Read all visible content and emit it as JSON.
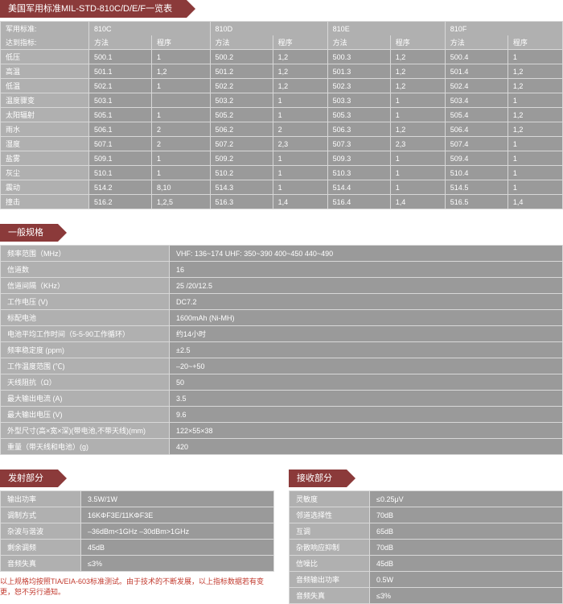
{
  "mil": {
    "title": "美国军用标准MIL-STD-810C/D/E/F一览表",
    "first_col": {
      "l1": "军用标准:",
      "l2": "达到指标:"
    },
    "sub": {
      "method": "方法",
      "proc": "程序"
    },
    "variants": [
      "810C",
      "810D",
      "810E",
      "810F"
    ],
    "rows": [
      {
        "label": "低压",
        "c": [
          [
            "500.1",
            "1"
          ],
          [
            "500.2",
            "1,2"
          ],
          [
            "500.3",
            "1,2"
          ],
          [
            "500.4",
            "1"
          ]
        ]
      },
      {
        "label": "高温",
        "c": [
          [
            "501.1",
            "1,2"
          ],
          [
            "501.2",
            "1,2"
          ],
          [
            "501.3",
            "1,2"
          ],
          [
            "501.4",
            "1,2"
          ]
        ]
      },
      {
        "label": "低温",
        "c": [
          [
            "502.1",
            "1"
          ],
          [
            "502.2",
            "1,2"
          ],
          [
            "502.3",
            "1,2"
          ],
          [
            "502.4",
            "1,2"
          ]
        ]
      },
      {
        "label": "温度骤变",
        "c": [
          [
            "503.1",
            ""
          ],
          [
            "503.2",
            "1"
          ],
          [
            "503.3",
            "1"
          ],
          [
            "503.4",
            "1"
          ]
        ]
      },
      {
        "label": "太阳辐射",
        "c": [
          [
            "505.1",
            "1"
          ],
          [
            "505.2",
            "1"
          ],
          [
            "505.3",
            "1"
          ],
          [
            "505.4",
            "1,2"
          ]
        ]
      },
      {
        "label": "雨水",
        "c": [
          [
            "506.1",
            "2"
          ],
          [
            "506.2",
            "2"
          ],
          [
            "506.3",
            "1,2"
          ],
          [
            "506.4",
            "1,2"
          ]
        ]
      },
      {
        "label": "湿度",
        "c": [
          [
            "507.1",
            "2"
          ],
          [
            "507.2",
            "2,3"
          ],
          [
            "507.3",
            "2,3"
          ],
          [
            "507.4",
            "1"
          ]
        ]
      },
      {
        "label": "盐雾",
        "c": [
          [
            "509.1",
            "1"
          ],
          [
            "509.2",
            "1"
          ],
          [
            "509.3",
            "1"
          ],
          [
            "509.4",
            "1"
          ]
        ]
      },
      {
        "label": "灰尘",
        "c": [
          [
            "510.1",
            "1"
          ],
          [
            "510.2",
            "1"
          ],
          [
            "510.3",
            "1"
          ],
          [
            "510.4",
            "1"
          ]
        ]
      },
      {
        "label": "震动",
        "c": [
          [
            "514.2",
            "8,10"
          ],
          [
            "514.3",
            "1"
          ],
          [
            "514.4",
            "1"
          ],
          [
            "514.5",
            "1"
          ]
        ]
      },
      {
        "label": "撞击",
        "c": [
          [
            "516.2",
            "1,2,5"
          ],
          [
            "516.3",
            "1,4"
          ],
          [
            "516.4",
            "1,4"
          ],
          [
            "516.5",
            "1,4"
          ]
        ]
      }
    ]
  },
  "general": {
    "title": "一般规格",
    "rows": [
      [
        "频率范围（MHz）",
        "VHF: 136~174   UHF: 350~390  400~450  440~490"
      ],
      [
        "信道数",
        "16"
      ],
      [
        "信道间隔（KHz）",
        "25 /20/12.5"
      ],
      [
        "工作电压 (V)",
        "DC7.2"
      ],
      [
        "标配电池",
        "1600mAh (Ni-MH)"
      ],
      [
        "电池平均工作时间（5-5-90工作循环）",
        "约14小时"
      ],
      [
        "频率稳定度 (ppm)",
        "±2.5"
      ],
      [
        "工作温度范围 (℃)",
        "–20~+50"
      ],
      [
        "天线阻抗（Ω）",
        "50"
      ],
      [
        "最大输出电流 (A)",
        "3.5"
      ],
      [
        "最大输出电压 (V)",
        "9.6"
      ],
      [
        "外型尺寸(高×宽×深)(带电池,不带天线)(mm)",
        "122×55×38"
      ],
      [
        "重量（带天线和电池）(g)",
        "420"
      ]
    ]
  },
  "tx": {
    "title": "发射部分",
    "rows": [
      [
        "输出功率",
        "3.5W/1W"
      ],
      [
        "调制方式",
        "16KΦF3E/11KΦF3E"
      ],
      [
        "杂波与谐波",
        "–36dBm<1GHz   –30dBm>1GHz"
      ],
      [
        "剩余调频",
        "45dB"
      ],
      [
        "音频失真",
        "≤3%"
      ]
    ],
    "footnote": "以上规格均按照TIA/EIA-603标准测试。由于技术的不断发展，以上指标数据若有变更，恕不另行通知。"
  },
  "rx": {
    "title": "接收部分",
    "rows": [
      [
        "灵敏度",
        "≤0.25μV"
      ],
      [
        "邻道选择性",
        "70dB"
      ],
      [
        "互调",
        "65dB"
      ],
      [
        "杂散响应抑制",
        "70dB"
      ],
      [
        "信噪比",
        "45dB"
      ],
      [
        "音频输出功率",
        "0.5W"
      ],
      [
        "音频失真",
        "≤3%"
      ]
    ]
  },
  "style": {
    "ribbon_bg": "#8b3a3a",
    "header_bg": "#b0b0b0",
    "cell_bg": "#9a9a9a",
    "border": "#d8d8d8",
    "footnote_color": "#c23a2e"
  }
}
